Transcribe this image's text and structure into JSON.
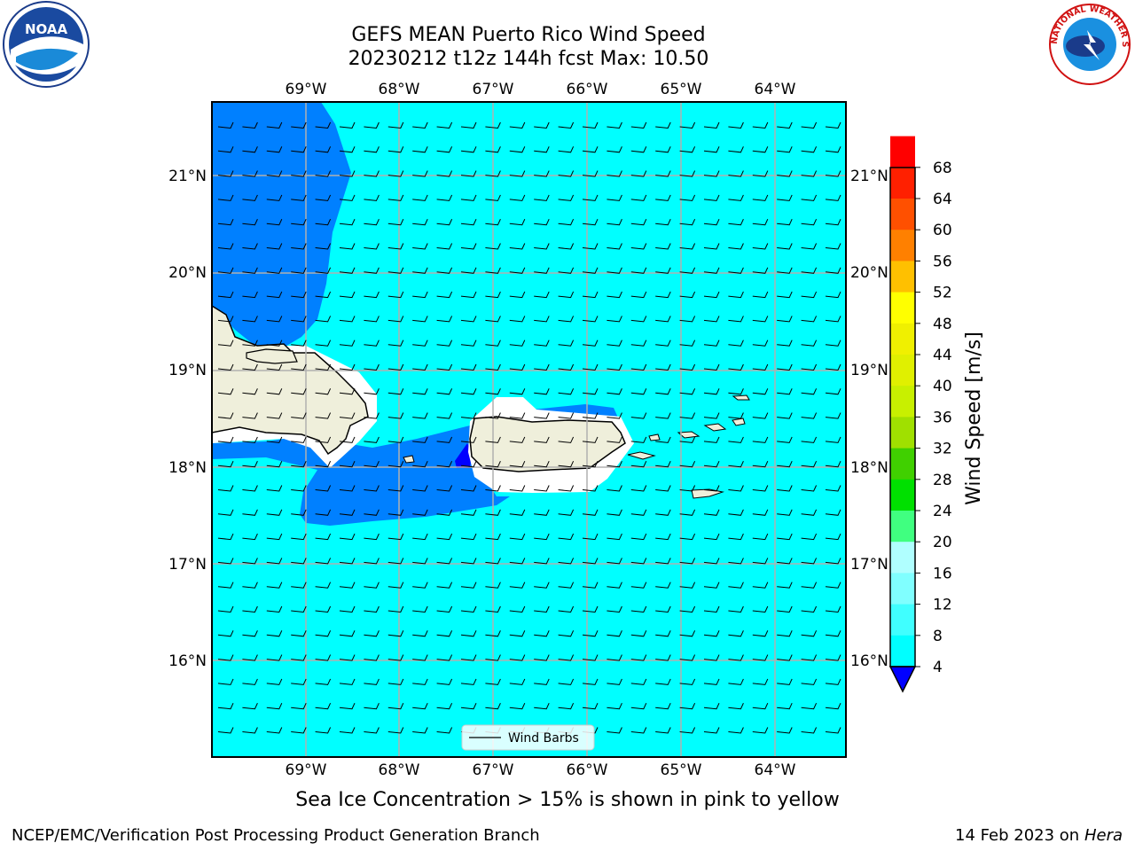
{
  "title": {
    "line1": "GEFS MEAN Puerto Rico Wind Speed",
    "line2": "20230212 t12z 144h fcst   Max: 10.50"
  },
  "logos": {
    "left": {
      "text": "NOAA",
      "icon": "noaa-logo"
    },
    "right": {
      "text": "NATIONAL WEATHER SERVICE",
      "icon": "nws-logo"
    }
  },
  "map": {
    "lon_labels": [
      "69°W",
      "68°W",
      "67°W",
      "66°W",
      "65°W",
      "64°W"
    ],
    "lat_labels": [
      "21°N",
      "20°N",
      "19°N",
      "18°N",
      "17°N",
      "16°N"
    ],
    "legend_label": "Wind Barbs",
    "colors": {
      "ocean_fill": "#00ffff",
      "slow_wind": "#0080ff",
      "very_slow": "#0000ff",
      "land": "#efefdb",
      "grid": "#b0b0b0"
    }
  },
  "colorbar": {
    "label": "Wind Speed [m/s]",
    "ticks": [
      "68",
      "64",
      "60",
      "56",
      "52",
      "48",
      "44",
      "40",
      "36",
      "32",
      "28",
      "24",
      "20",
      "16",
      "12",
      "8",
      "4"
    ],
    "colors": [
      "#0080ff",
      "#00ffff",
      "#40ffff",
      "#80ffff",
      "#b0ffff",
      "#40ff80",
      "#00e000",
      "#40d000",
      "#a0e000",
      "#c8f000",
      "#e0f000",
      "#f0f000",
      "#ffff00",
      "#ffc000",
      "#ff8000",
      "#ff5000",
      "#ff2000",
      "#ff0000"
    ]
  },
  "footer": {
    "note": "Sea Ice Concentration > 15% is shown in pink to yellow",
    "left": "NCEP/EMC/Verification Post Processing Product Generation Branch",
    "date": "14 Feb 2023 on",
    "machine": "Hera"
  }
}
